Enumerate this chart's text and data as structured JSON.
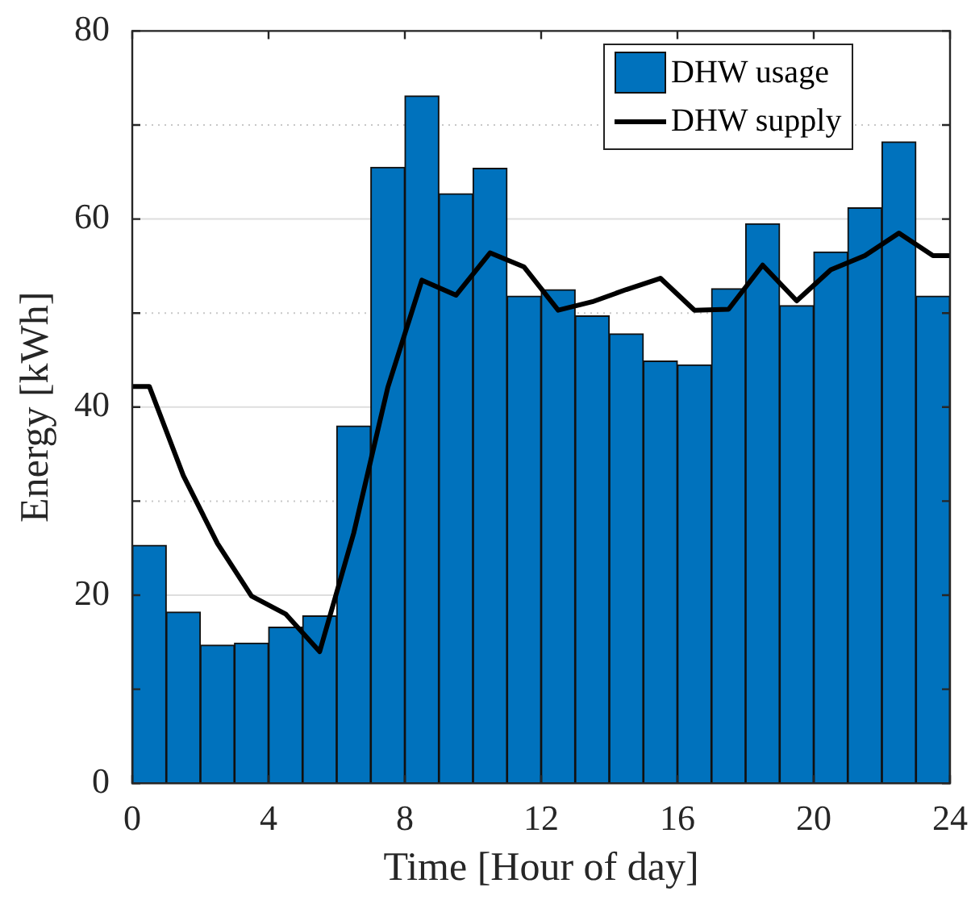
{
  "chart_data": {
    "type": "bar",
    "xlabel": "Time [Hour of day]",
    "ylabel": "Energy [kWh]",
    "xlim": [
      0,
      24
    ],
    "xticks": [
      0,
      4,
      8,
      12,
      16,
      20,
      24
    ],
    "ylim": [
      0,
      80
    ],
    "yticks": [
      0,
      {
        "value": 10,
        "label": null
      },
      20,
      {
        "value": 30,
        "label": null
      },
      40,
      {
        "value": 50,
        "label": null
      },
      60,
      {
        "value": 70,
        "label": null
      },
      80
    ],
    "grid": "y",
    "legend": "top right",
    "series": [
      {
        "name": "DHW usage",
        "color": "#0072bd",
        "x": [
          0.5,
          1.5,
          2.5,
          3.5,
          4.5,
          5.5,
          6.5,
          7.5,
          8.5,
          9.5,
          10.5,
          11.5,
          12.5,
          13.5,
          14.5,
          15.5,
          16.5,
          17.5,
          18.5,
          19.5,
          20.5,
          21.5,
          22.5,
          23.5
        ],
        "values": [
          25.3,
          18.2,
          14.7,
          14.9,
          16.6,
          17.8,
          38.0,
          65.5,
          73.1,
          62.7,
          65.4,
          51.8,
          52.5,
          49.7,
          47.8,
          44.9,
          44.5,
          52.6,
          59.5,
          50.8,
          56.5,
          61.2,
          68.2,
          51.8
        ]
      },
      {
        "name": "DHW supply",
        "type": "line",
        "color": "#000000",
        "marker": "none",
        "line_style": "solid",
        "x": [
          0,
          0.5,
          1.5,
          2.5,
          3.5,
          4.5,
          5.5,
          6.5,
          7.5,
          8.5,
          9.5,
          10.5,
          11.5,
          12.5,
          13.5,
          14.5,
          15.5,
          16.5,
          17.5,
          18.5,
          19.5,
          20.5,
          21.5,
          22.5,
          23.5,
          24
        ],
        "values": [
          42.2,
          42.2,
          32.7,
          25.5,
          19.9,
          18.0,
          14.0,
          26.6,
          42.1,
          53.5,
          51.9,
          56.4,
          54.9,
          50.3,
          51.2,
          52.5,
          53.7,
          50.3,
          50.4,
          55.1,
          51.3,
          54.6,
          56.1,
          58.5,
          56.1,
          56.1
        ]
      }
    ]
  }
}
